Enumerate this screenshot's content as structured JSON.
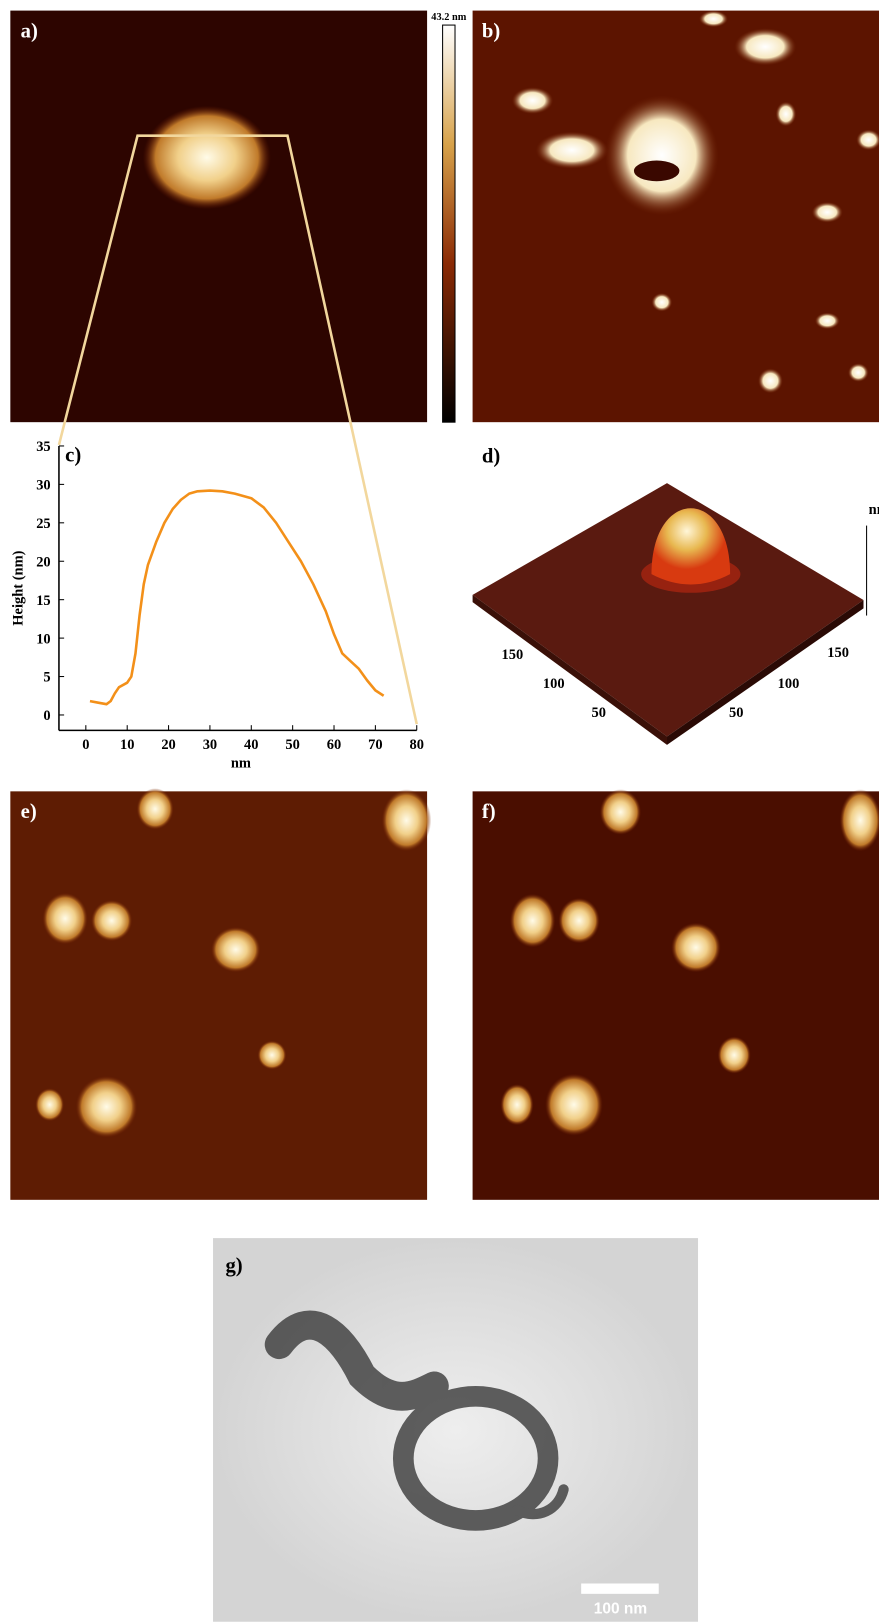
{
  "panels": {
    "a": {
      "label": "a)",
      "colorbar_max": "43.2 nm"
    },
    "b": {
      "label": "b)"
    },
    "d": {
      "label": "d)",
      "z_unit": "nm",
      "left_ticks": [
        "150",
        "100",
        "50"
      ],
      "right_ticks": [
        "150",
        "100",
        "50"
      ]
    },
    "e": {
      "label": "e)"
    },
    "f": {
      "label": "f)"
    },
    "g": {
      "label": "g)",
      "scale_bar": "100 nm"
    }
  },
  "chart_data": {
    "type": "line",
    "title": "c)",
    "xlabel": "nm",
    "ylabel": "Height (nm)",
    "color": "#f39019",
    "x": [
      1,
      3,
      5,
      6,
      7,
      8,
      10,
      11,
      12,
      13,
      14,
      15,
      17,
      19,
      21,
      23,
      25,
      27,
      30,
      33,
      36,
      40,
      43,
      46,
      49,
      52,
      55,
      58,
      60,
      62,
      64,
      66,
      68,
      70,
      72
    ],
    "values": [
      1.8,
      1.6,
      1.4,
      1.8,
      2.8,
      3.6,
      4.2,
      5,
      8,
      13,
      17,
      19.5,
      22.5,
      25,
      26.8,
      28,
      28.8,
      29.1,
      29.2,
      29.1,
      28.8,
      28.2,
      27,
      25,
      22.5,
      20,
      17,
      13.5,
      10.5,
      8,
      7,
      6,
      4.5,
      3.2,
      2.5
    ],
    "xlim": [
      -6.5,
      80
    ],
    "ylim": [
      -2,
      35
    ],
    "xticks": [
      0,
      10,
      20,
      30,
      40,
      50,
      60,
      70,
      80
    ],
    "yticks": [
      0,
      5,
      10,
      15,
      20,
      25,
      30,
      35
    ]
  }
}
